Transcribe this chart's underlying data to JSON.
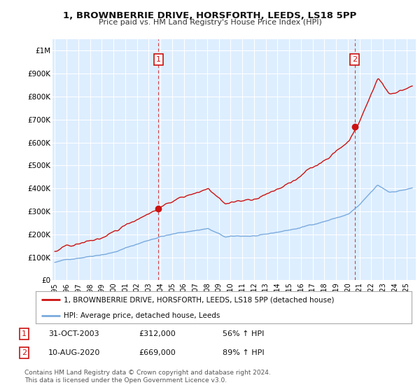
{
  "title": "1, BROWNBERRIE DRIVE, HORSFORTH, LEEDS, LS18 5PP",
  "subtitle": "Price paid vs. HM Land Registry's House Price Index (HPI)",
  "legend_line1": "1, BROWNBERRIE DRIVE, HORSFORTH, LEEDS, LS18 5PP (detached house)",
  "legend_line2": "HPI: Average price, detached house, Leeds",
  "annotation1_label": "1",
  "annotation1_date": "31-OCT-2003",
  "annotation1_price": "£312,000",
  "annotation1_hpi": "56% ↑ HPI",
  "annotation2_label": "2",
  "annotation2_date": "10-AUG-2020",
  "annotation2_price": "£669,000",
  "annotation2_hpi": "89% ↑ HPI",
  "footer": "Contains HM Land Registry data © Crown copyright and database right 2024.\nThis data is licensed under the Open Government Licence v3.0.",
  "sale1_year": 2003.833,
  "sale1_value": 312000,
  "sale2_year": 2020.583,
  "sale2_value": 669000,
  "hpi_color": "#7aaadd",
  "price_color": "#cc1111",
  "chart_bg": "#ddeeff",
  "background_color": "#ffffff",
  "grid_color": "#ffffff",
  "ylim_min": 0,
  "ylim_max": 1050000,
  "xlim_min": 1994.8,
  "xlim_max": 2025.8
}
